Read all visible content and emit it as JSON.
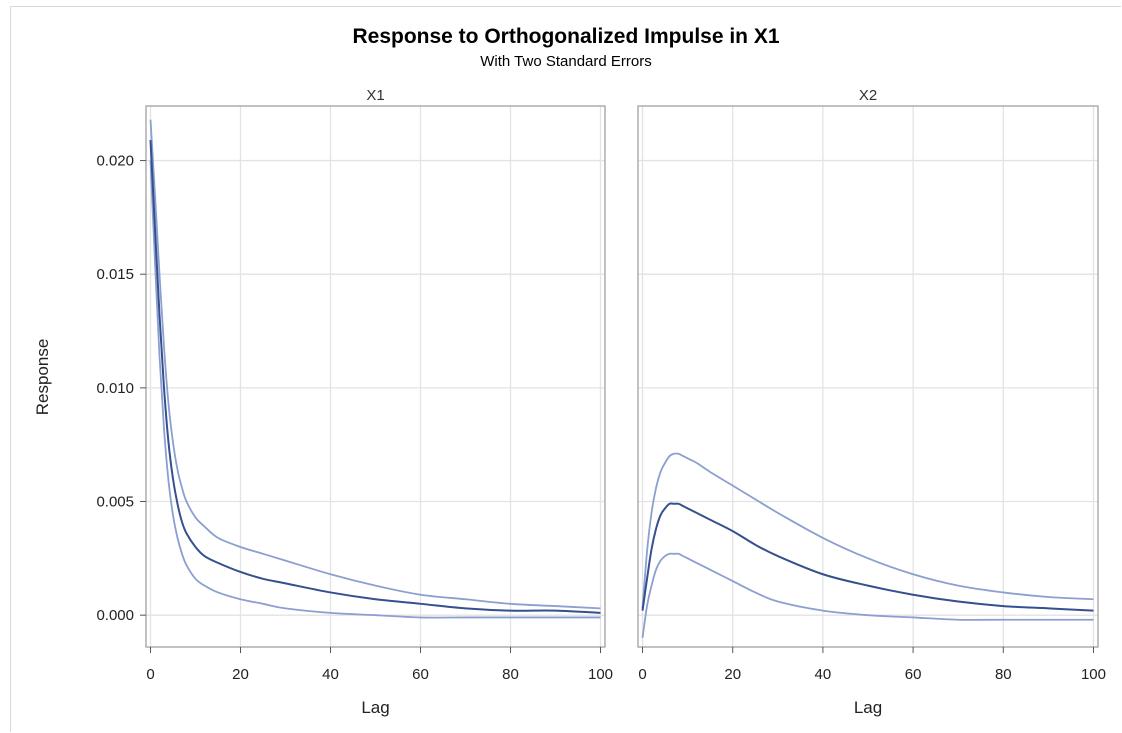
{
  "chart_data": {
    "type": "line",
    "title": "Response to Orthogonalized Impulse in X1",
    "subtitle": "With Two Standard Errors",
    "ylabel": "Response",
    "xlabel": "Lag",
    "ylim": [
      -0.0014,
      0.0224
    ],
    "xlim": [
      -1,
      101
    ],
    "yticks": [
      "0.000",
      "0.005",
      "0.010",
      "0.015",
      "0.020"
    ],
    "ytick_values": [
      0,
      0.005,
      0.01,
      0.015,
      0.02
    ],
    "xticks": [
      "0",
      "20",
      "40",
      "60",
      "80",
      "100"
    ],
    "xtick_values": [
      0,
      20,
      40,
      60,
      80,
      100
    ],
    "grid": true,
    "colors": {
      "response": "#34508f",
      "bands": "#8b9fd0",
      "grid": "#e3e3e3",
      "frame": "#a0a0a0"
    },
    "panels": [
      {
        "label": "X1",
        "x": [
          0,
          1,
          2,
          3,
          4,
          5,
          6,
          7,
          8,
          10,
          12,
          15,
          20,
          25,
          30,
          40,
          50,
          60,
          70,
          80,
          90,
          100
        ],
        "series": [
          {
            "role": "upper",
            "values": [
              0.0218,
              0.0185,
              0.015,
              0.0118,
              0.0093,
              0.0076,
              0.0064,
              0.0056,
              0.005,
              0.0043,
              0.0039,
              0.0034,
              0.003,
              0.0027,
              0.0024,
              0.0018,
              0.0013,
              0.0009,
              0.0007,
              0.0005,
              0.0004,
              0.0003
            ]
          },
          {
            "role": "response",
            "values": [
              0.0209,
              0.017,
              0.0132,
              0.01,
              0.0076,
              0.006,
              0.0049,
              0.0041,
              0.0036,
              0.003,
              0.0026,
              0.0023,
              0.0019,
              0.0016,
              0.0014,
              0.001,
              0.0007,
              0.0005,
              0.0003,
              0.0002,
              0.0002,
              0.0001
            ]
          },
          {
            "role": "lower",
            "values": [
              0.02,
              0.0155,
              0.0114,
              0.0082,
              0.0059,
              0.0044,
              0.0034,
              0.0027,
              0.0022,
              0.0016,
              0.0013,
              0.001,
              0.0007,
              0.0005,
              0.0003,
              0.0001,
              0.0,
              -0.0001,
              -0.0001,
              -0.0001,
              -0.0001,
              -0.0001
            ]
          }
        ]
      },
      {
        "label": "X2",
        "x": [
          0,
          1,
          2,
          3,
          4,
          5,
          6,
          7,
          8,
          9,
          10,
          12,
          15,
          20,
          25,
          30,
          40,
          50,
          60,
          70,
          80,
          90,
          100
        ],
        "series": [
          {
            "role": "upper",
            "values": [
              0.0003,
              0.0028,
              0.0045,
              0.0056,
              0.0063,
              0.0067,
              0.007,
              0.0071,
              0.0071,
              0.007,
              0.0069,
              0.0067,
              0.0063,
              0.0057,
              0.0051,
              0.0045,
              0.0034,
              0.0025,
              0.0018,
              0.0013,
              0.001,
              0.0008,
              0.0007
            ]
          },
          {
            "role": "response",
            "values": [
              0.0002,
              0.0016,
              0.0029,
              0.0038,
              0.0044,
              0.0047,
              0.0049,
              0.0049,
              0.0049,
              0.0048,
              0.0047,
              0.0045,
              0.0042,
              0.0037,
              0.0031,
              0.0026,
              0.0018,
              0.0013,
              0.0009,
              0.0006,
              0.0004,
              0.0003,
              0.0002
            ]
          },
          {
            "role": "lower",
            "values": [
              -0.001,
              0.0004,
              0.0013,
              0.002,
              0.0024,
              0.0026,
              0.0027,
              0.0027,
              0.0027,
              0.0026,
              0.0025,
              0.0023,
              0.002,
              0.0015,
              0.001,
              0.0006,
              0.0002,
              -0.0,
              -0.0001,
              -0.0002,
              -0.0002,
              -0.0002,
              -0.0002
            ]
          }
        ]
      }
    ]
  }
}
